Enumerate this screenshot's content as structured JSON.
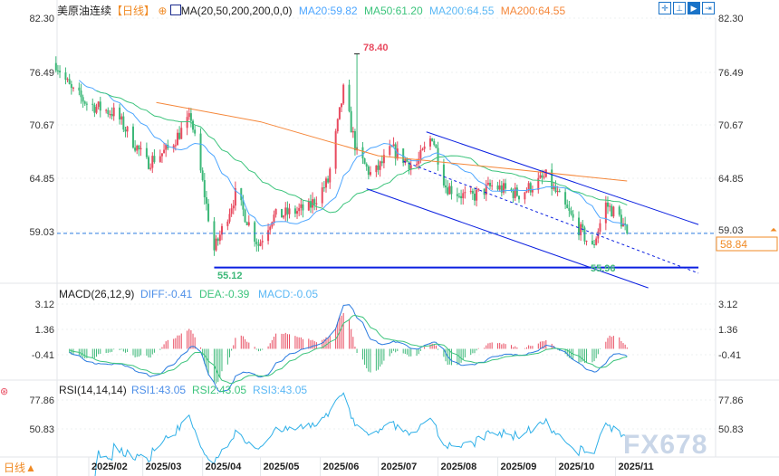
{
  "header": {
    "symbol": "美原油连续",
    "period": "【日线】",
    "indicator": "MA(20,50,200,200,0,0)",
    "ma_values": [
      {
        "label": "MA20:59.82",
        "color": "#4da6ff"
      },
      {
        "label": "MA50:61.20",
        "color": "#3cc47c"
      },
      {
        "label": "MA200:64.55",
        "color": "#5bb8f5"
      },
      {
        "label": "MA200:64.55",
        "color": "#f5873a"
      }
    ]
  },
  "toolbar": [
    {
      "icon": "crosshair-icon"
    },
    {
      "icon": "range-icon"
    },
    {
      "icon": "play-icon"
    },
    {
      "icon": "exit-icon"
    }
  ],
  "price_axis": {
    "ticks": [
      "82.30",
      "76.49",
      "70.67",
      "64.85",
      "59.03"
    ],
    "current": "58.84"
  },
  "annotations": {
    "high": "78.40",
    "low1": "55.12",
    "low2": "55.96"
  },
  "macd": {
    "title": "MACD(26,12,9)",
    "diff": "DIFF:-0.41",
    "dea": "DEA:-0.39",
    "macd": "MACD:-0.05",
    "ticks": [
      "3.12",
      "1.36",
      "-0.41"
    ]
  },
  "rsi": {
    "title": "RSI(14,14,14)",
    "rsi1": "RSI1:43.05",
    "rsi2": "RSI2:43.05",
    "rsi3": "RSI3:43.05",
    "ticks": [
      "77.86",
      "50.83"
    ]
  },
  "x_axis": {
    "labels": [
      "2025/02",
      "2025/03",
      "2025/04",
      "2025/05",
      "2025/06",
      "2025/07",
      "2025/08",
      "2025/09",
      "2025/10",
      "2025/11"
    ]
  },
  "footer": {
    "period": "日线▲"
  },
  "watermark": "FX678",
  "colors": {
    "up": "#e84a5f",
    "down": "#3cb878",
    "trend": "#0a1fe0",
    "ma20": "#4da6ff",
    "ma50": "#3cc47c",
    "ma200": "#f5873a"
  },
  "chart_data": {
    "type": "candlestick",
    "ylim": [
      53.5,
      82.3
    ],
    "anchors": [
      [
        "2025-01-15",
        77.4
      ],
      [
        "2025-01-23",
        74.4
      ],
      [
        "2025-02-01",
        72.9
      ],
      [
        "2025-02-15",
        71.9
      ],
      [
        "2025-03-03",
        66.5
      ],
      [
        "2025-03-14",
        68
      ],
      [
        "2025-03-26",
        71.5
      ],
      [
        "2025-03-31",
        65.5
      ],
      [
        "2025-04-07",
        57
      ],
      [
        "2025-04-18",
        63.1
      ],
      [
        "2025-04-30",
        57.6
      ],
      [
        "2025-05-07",
        60.6
      ],
      [
        "2025-05-26",
        61.6
      ],
      [
        "2025-06-05",
        64.5
      ],
      [
        "2025-06-13",
        74.4
      ],
      [
        "2025-06-20",
        67.5
      ],
      [
        "2025-06-28",
        65
      ],
      [
        "2025-07-08",
        68
      ],
      [
        "2025-07-20",
        66
      ],
      [
        "2025-07-29",
        69.5
      ],
      [
        "2025-08-05",
        64
      ],
      [
        "2025-08-17",
        62.6
      ],
      [
        "2025-08-29",
        64
      ],
      [
        "2025-09-12",
        63.1
      ],
      [
        "2025-09-26",
        65
      ],
      [
        "2025-10-06",
        61.6
      ],
      [
        "2025-10-20",
        57.2
      ],
      [
        "2025-10-27",
        62
      ],
      [
        "2025-11-03",
        60.6
      ],
      [
        "2025-11-07",
        58.84
      ]
    ],
    "ma200": [
      [
        "2025-03-08",
        73.1
      ],
      [
        "2025-05-01",
        71
      ],
      [
        "2025-07-01",
        67.3
      ],
      [
        "2025-09-01",
        66
      ],
      [
        "2025-11-07",
        64.55
      ]
    ],
    "lines": [
      {
        "style": "solid",
        "p": [
          [
            "2025-07-26",
            69.9
          ],
          [
            "2025-12-14",
            59.8
          ]
        ]
      },
      {
        "style": "solid",
        "p": [
          [
            "2025-06-25",
            63.7
          ],
          [
            "2025-11-18",
            52.9
          ]
        ]
      },
      {
        "style": "dashed",
        "p": [
          [
            "2025-07-14",
            66.7
          ],
          [
            "2025-12-14",
            54.5
          ]
        ]
      },
      {
        "style": "solid",
        "p": [
          [
            "2025-04-07",
            55.12
          ],
          [
            "2025-12-14",
            55.12
          ]
        ]
      }
    ]
  }
}
